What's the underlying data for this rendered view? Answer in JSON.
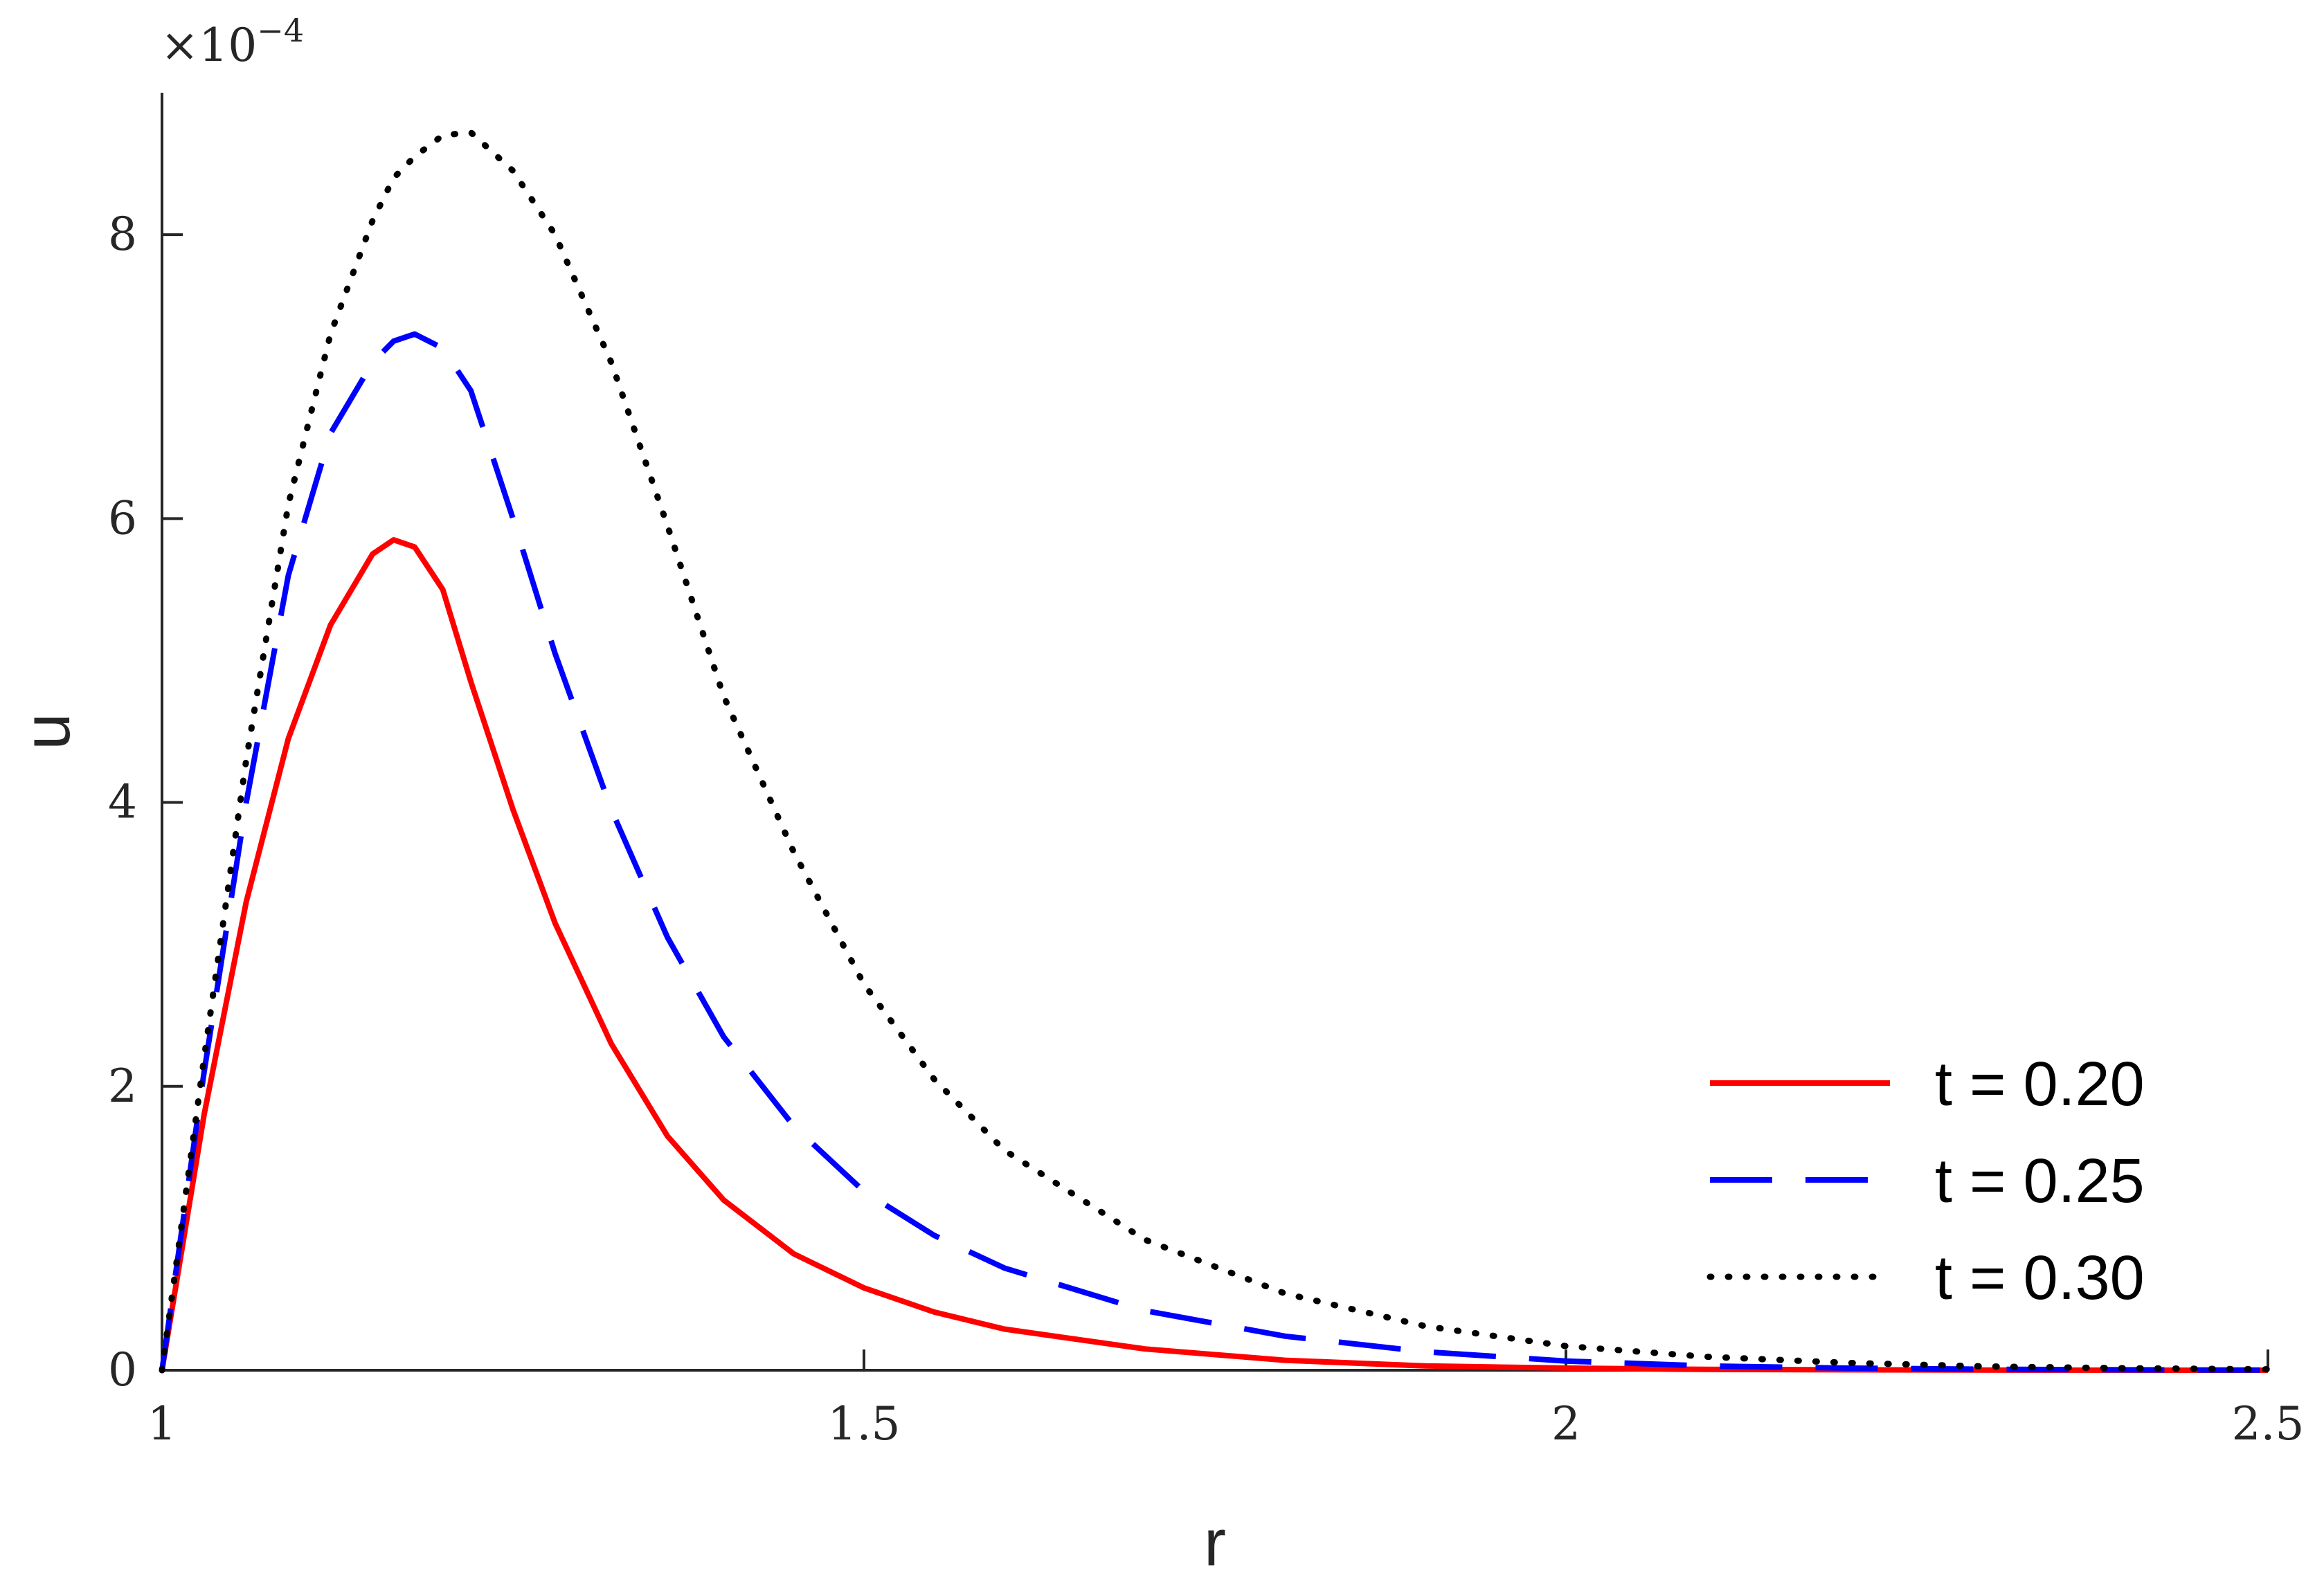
{
  "chart_data": {
    "type": "line",
    "xlabel": "r",
    "ylabel": "u",
    "xlim": [
      1,
      2.5
    ],
    "ylim": [
      0,
      0.0009
    ],
    "y_exponent_label": "×10",
    "y_exponent_power": "−4",
    "x_ticks": [
      {
        "value": 1,
        "label": "1"
      },
      {
        "value": 1.5,
        "label": "1.5"
      },
      {
        "value": 2,
        "label": "2"
      },
      {
        "value": 2.5,
        "label": "2.5"
      }
    ],
    "y_ticks": [
      {
        "value": 0,
        "label": "0"
      },
      {
        "value": 0.0002,
        "label": "2"
      },
      {
        "value": 0.0004,
        "label": "4"
      },
      {
        "value": 0.0006,
        "label": "6"
      },
      {
        "value": 0.0008,
        "label": "8"
      }
    ],
    "grid": false,
    "legend_position": "bottom-right",
    "x": [
      1.0,
      1.03,
      1.06,
      1.09,
      1.12,
      1.15,
      1.165,
      1.18,
      1.2,
      1.22,
      1.25,
      1.28,
      1.32,
      1.36,
      1.4,
      1.45,
      1.5,
      1.55,
      1.6,
      1.7,
      1.8,
      1.9,
      2.0,
      2.1,
      2.2,
      2.3,
      2.4,
      2.5
    ],
    "series": [
      {
        "name": "t = 0.20",
        "color": "#ff0000",
        "style": "solid",
        "values": [
          0.0,
          0.00018,
          0.00033,
          0.000445,
          0.000525,
          0.000575,
          0.000585,
          0.00058,
          0.00055,
          0.000485,
          0.000395,
          0.000315,
          0.00023,
          0.000165,
          0.00012,
          8.2e-05,
          5.8e-05,
          4.1e-05,
          2.9e-05,
          1.5e-05,
          7e-06,
          3e-06,
          1.5e-06,
          6e-07,
          3e-07,
          1e-07,
          5e-08,
          0.0
        ]
      },
      {
        "name": "t = 0.25",
        "color": "#0000ff",
        "style": "dashed",
        "values": [
          0.0,
          0.00021,
          0.0004,
          0.00056,
          0.00066,
          0.00071,
          0.000725,
          0.00073,
          0.00072,
          0.00069,
          0.0006,
          0.000505,
          0.000395,
          0.000305,
          0.000235,
          0.000172,
          0.000126,
          9.5e-05,
          7.2e-05,
          4.2e-05,
          2.4e-05,
          1.3e-05,
          6.5e-06,
          3e-06,
          1.5e-06,
          7e-07,
          3e-07,
          1e-07
        ]
      },
      {
        "name": "t = 0.30",
        "color": "#000000",
        "style": "dotted",
        "values": [
          0.0,
          0.00022,
          0.00043,
          0.00061,
          0.00073,
          0.00081,
          0.00084,
          0.000855,
          0.00087,
          0.000872,
          0.000845,
          0.0008,
          0.00071,
          0.000595,
          0.000475,
          0.000365,
          0.000272,
          0.000205,
          0.000155,
          9.2e-05,
          5.4e-05,
          3.1e-05,
          1.7e-05,
          9.5e-06,
          5.2e-06,
          2.7e-06,
          1.4e-06,
          7e-07
        ]
      }
    ]
  }
}
